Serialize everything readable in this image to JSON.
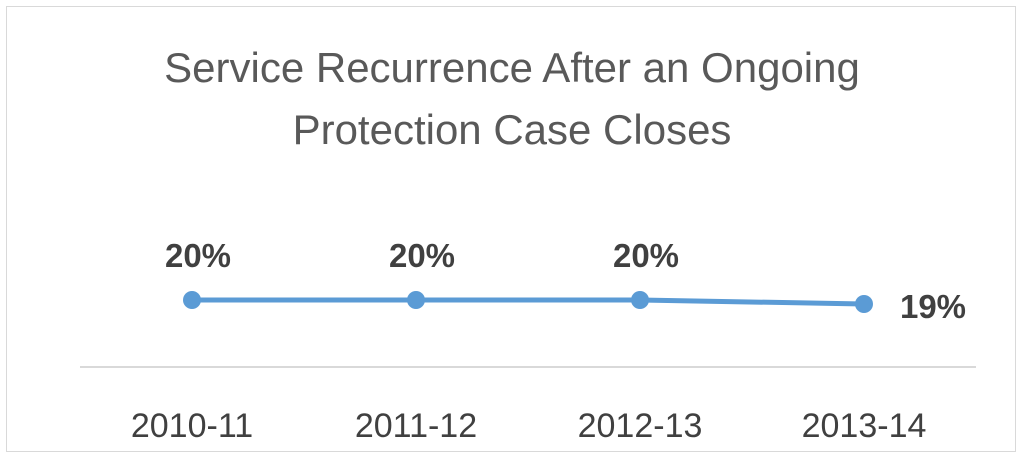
{
  "chart_data": {
    "type": "line",
    "title_lines": [
      "Service Recurrence After an Ongoing",
      "Protection Case Closes"
    ],
    "categories": [
      "2010-11",
      "2011-12",
      "2012-13",
      "2013-14"
    ],
    "series": [
      {
        "values": [
          20,
          20,
          20,
          19
        ],
        "data_labels": [
          "20%",
          "20%",
          "20%",
          "19%"
        ],
        "color": "#5b9bd5"
      }
    ],
    "ylim": [
      0,
      21
    ],
    "grid": false,
    "legend": "none",
    "axis_color": "#d9d9d9"
  }
}
